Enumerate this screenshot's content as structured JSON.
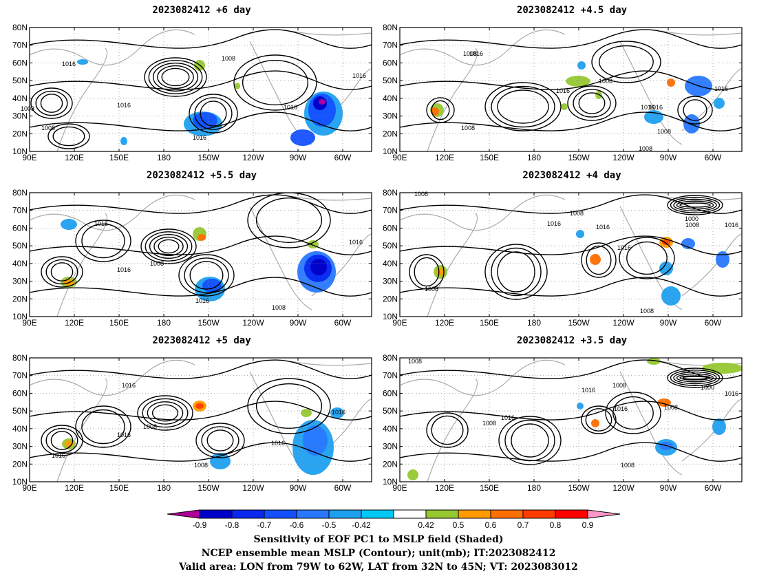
{
  "panels": [
    {
      "title": "2023082412  +6 day",
      "contour_labels": [
        "1016",
        "1008",
        "1008",
        "1016",
        "1016",
        "1016",
        "1016",
        "1008"
      ]
    },
    {
      "title": "2023082412  +4.5 day",
      "contour_labels": [
        "1008",
        "1016",
        "1016",
        "1008",
        "1016",
        "1016",
        "1016",
        "1008",
        "1008",
        "1008"
      ]
    },
    {
      "title": "2023082412  +5.5 day",
      "contour_labels": [
        "1016",
        "1008",
        "1016",
        "1016",
        "1016",
        "1008"
      ]
    },
    {
      "title": "2023082412  +4 day",
      "contour_labels": [
        "1008",
        "1008",
        "1016",
        "1016",
        "1016",
        "1008",
        "1000",
        "1008",
        "1016",
        "1008"
      ]
    },
    {
      "title": "2023082412  +5 day",
      "contour_labels": [
        "1016",
        "1008",
        "1016",
        "1008",
        "1016",
        "1016",
        "1016"
      ]
    },
    {
      "title": "2023082412  +3.5 day",
      "contour_labels": [
        "1008",
        "1016",
        "1008",
        "1016",
        "1008",
        "1016",
        "1000",
        "1016",
        "1008",
        "1008"
      ]
    }
  ],
  "axes": {
    "lat_labels": [
      "80N",
      "70N",
      "60N",
      "50N",
      "40N",
      "30N",
      "20N",
      "10N"
    ],
    "lon_labels": [
      "90E",
      "120E",
      "150E",
      "180",
      "150W",
      "120W",
      "90W",
      "60W"
    ]
  },
  "colorbar": {
    "ticks": [
      "-0.9",
      "-0.8",
      "-0.7",
      "-0.6",
      "-0.5",
      "-0.42",
      "0.42",
      "0.5",
      "0.6",
      "0.7",
      "0.8",
      "0.9"
    ],
    "colors": [
      "#b0009a",
      "#0000c8",
      "#0a28f0",
      "#1450ff",
      "#2878ff",
      "#1ea0f0",
      "#00c8f5",
      "#ffffff",
      "#96c832",
      "#ff9b00",
      "#ff6e00",
      "#ff3c00",
      "#ff0000",
      "#ff96c8"
    ]
  },
  "caption": {
    "line1": "Sensitivity of EOF PC1 to MSLP field (Shaded)",
    "line2": "NCEP ensemble mean MSLP (Contour); unit(mb); IT:2023082412",
    "line3": "Valid area: LON from 79W to 62W, LAT from 32N to 45N; VT: 2023083012"
  }
}
